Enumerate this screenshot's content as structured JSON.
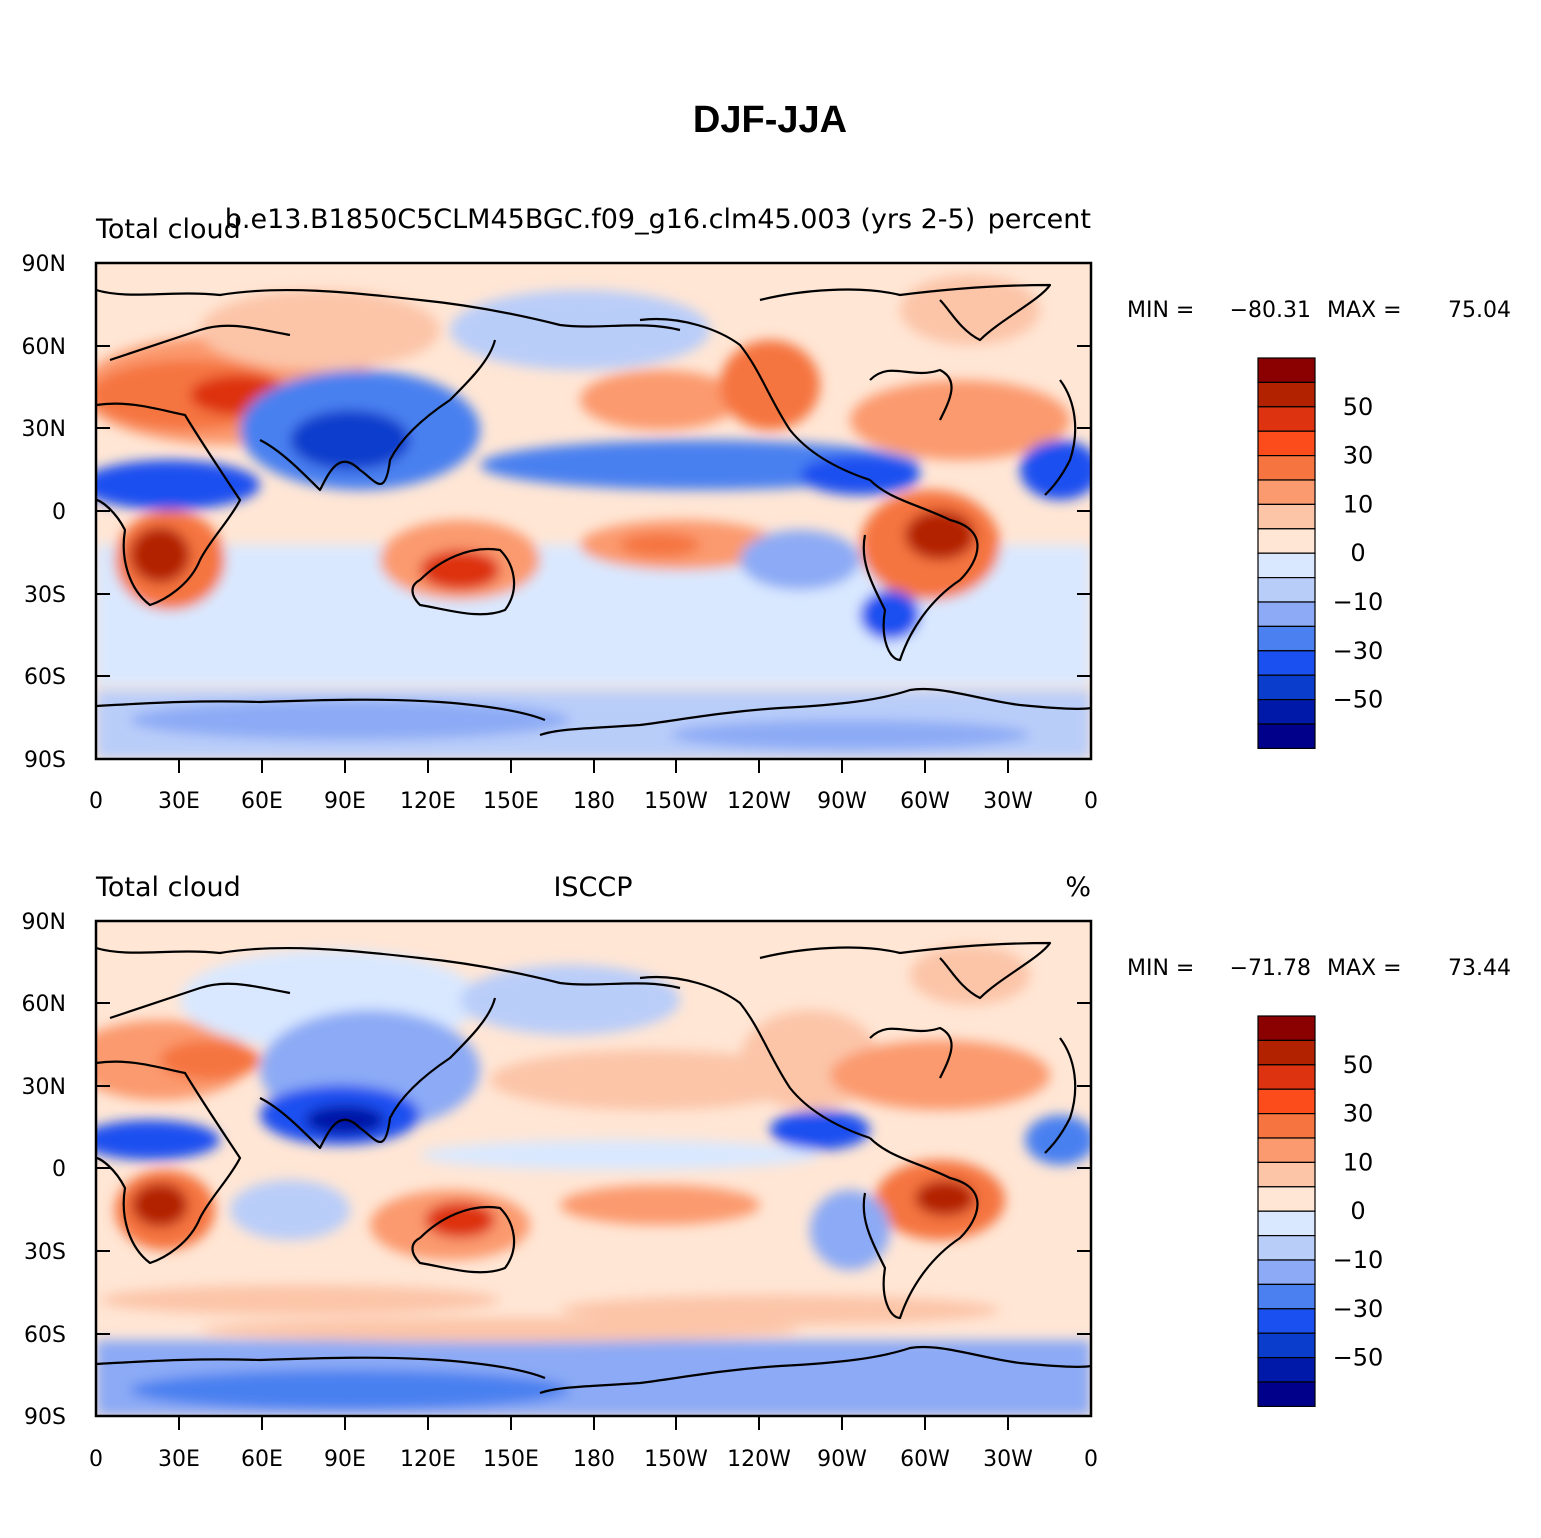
{
  "figure": {
    "title": "DJF-JJA"
  },
  "axis_ticks": {
    "lat": [
      "90N",
      "60N",
      "30N",
      "0",
      "30S",
      "60S",
      "90S"
    ],
    "lon": [
      "0",
      "30E",
      "60E",
      "90E",
      "120E",
      "150E",
      "180",
      "150W",
      "120W",
      "90W",
      "60W",
      "30W",
      "0"
    ]
  },
  "colorbar": {
    "colors": [
      "#00008b",
      "#0019a8",
      "#0a3dcc",
      "#1a50f0",
      "#4a80f0",
      "#8caaf5",
      "#b9cdf9",
      "#d9e8ff",
      "#ffe6d5",
      "#fcc5a8",
      "#fb9a6e",
      "#f5743f",
      "#fc4c1c",
      "#dd3311",
      "#b32200",
      "#8b0000"
    ],
    "labels": [
      "50",
      "30",
      "10",
      "0",
      "−10",
      "−30",
      "−50"
    ]
  },
  "panels": [
    {
      "left_title": "Total cloud",
      "center_title": "b.e13.B1850C5CLM45BGC.f09_g16.clm45.003 (yrs 2-5)",
      "right_title": "percent",
      "stats": {
        "min_label": "MIN =",
        "min": "−80.31",
        "max_label": "MAX =",
        "max": "75.04"
      }
    },
    {
      "left_title": "Total cloud",
      "center_title": "ISCCP",
      "right_title": "%",
      "stats": {
        "min_label": "MIN =",
        "min": "−71.78",
        "max_label": "MAX =",
        "max": "73.44"
      }
    }
  ],
  "colors": {
    "outline": "#000000",
    "neutral_positive": "#ffe6d5",
    "neutral_negative": "#d9e8ff"
  }
}
